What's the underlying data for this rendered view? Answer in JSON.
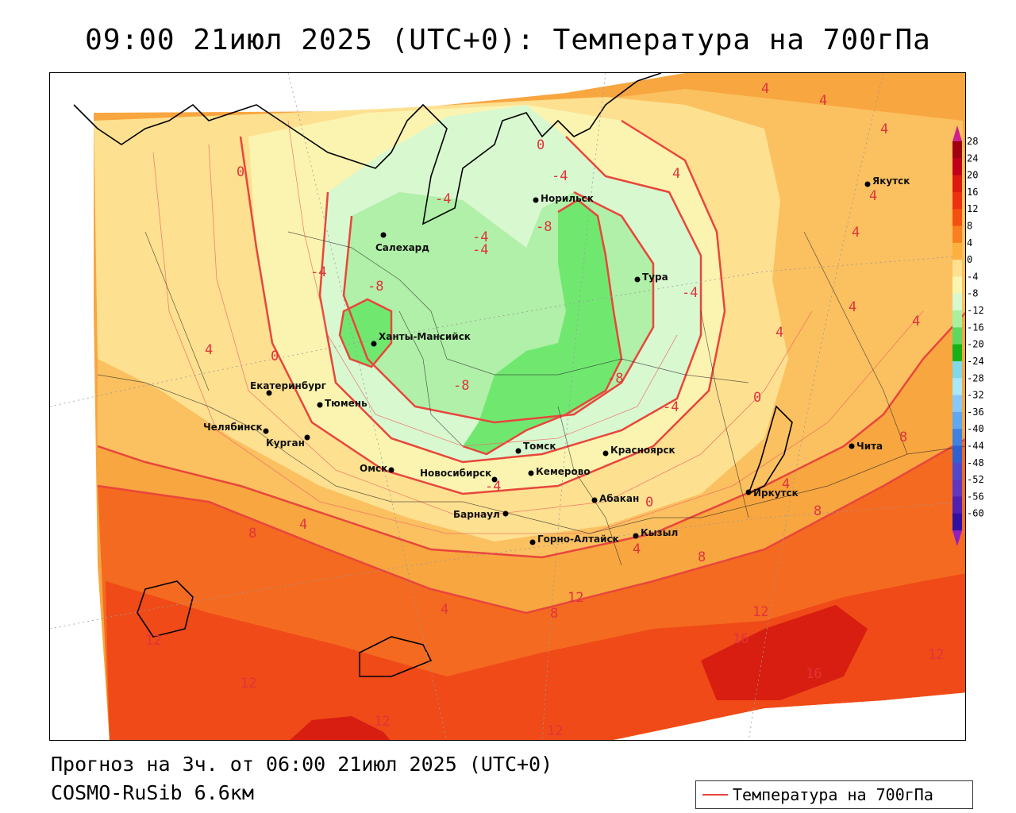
{
  "header": {
    "title": "09:00 21июл 2025 (UTC+0): Температура на 700гПа"
  },
  "footer": {
    "forecast_line": "Прогноз на 3ч. от 06:00 21июл 2025 (UTC+0)",
    "model_line": "COSMO-RuSib 6.6км"
  },
  "legend": {
    "line_label": "Температура на 700гПа",
    "line_color": "#e8463c"
  },
  "colorbar": {
    "ticks": [
      "28",
      "24",
      "20",
      "16",
      "12",
      "8",
      "4",
      "0",
      "-4",
      "-8",
      "-12",
      "-16",
      "-20",
      "-24",
      "-28",
      "-32",
      "-36",
      "-40",
      "-44",
      "-48",
      "-52",
      "-56",
      "-60"
    ],
    "colors": [
      "#a00010",
      "#c00018",
      "#dc1a10",
      "#ec3010",
      "#f45010",
      "#f88020",
      "#fcb040",
      "#fde090",
      "#f8f6b0",
      "#d8f8d0",
      "#a8f0a0",
      "#60d860",
      "#18b018",
      "#80d8e8",
      "#a8e8f8",
      "#88c8f8",
      "#60a8f0",
      "#4080e0",
      "#3060d0",
      "#5048c8",
      "#6038c0",
      "#5020b0",
      "#3010a0"
    ],
    "top_arrow_color": "#d0208c",
    "bottom_arrow_color": "#9020c0"
  },
  "cities": [
    {
      "name": "Салехард"
    },
    {
      "name": "Норильск"
    },
    {
      "name": "Тура"
    },
    {
      "name": "Ханты-Мансийск"
    },
    {
      "name": "Екатеринбург"
    },
    {
      "name": "Тюмень"
    },
    {
      "name": "Челябинск"
    },
    {
      "name": "Курган"
    },
    {
      "name": "Омск"
    },
    {
      "name": "Новосибирск"
    },
    {
      "name": "Томск"
    },
    {
      "name": "Кемерово"
    },
    {
      "name": "Красноярск"
    },
    {
      "name": "Барнаул"
    },
    {
      "name": "Абакан"
    },
    {
      "name": "Горно-Алтайск"
    },
    {
      "name": "Кызыл"
    },
    {
      "name": "Иркутск"
    },
    {
      "name": "Чита"
    },
    {
      "name": "Якутск"
    }
  ],
  "isotherm_labels": [
    {
      "text": "0"
    },
    {
      "text": "0"
    },
    {
      "text": "-4"
    },
    {
      "text": "-4"
    },
    {
      "text": "-4"
    },
    {
      "text": "-4"
    },
    {
      "text": "-8"
    },
    {
      "text": "-8"
    },
    {
      "text": "-8"
    },
    {
      "text": "-8"
    },
    {
      "text": "-4"
    },
    {
      "text": "-4"
    },
    {
      "text": "4"
    },
    {
      "text": "4"
    },
    {
      "text": "4"
    },
    {
      "text": "4"
    },
    {
      "text": "4"
    },
    {
      "text": "4"
    },
    {
      "text": "4"
    },
    {
      "text": "4"
    },
    {
      "text": "4"
    },
    {
      "text": "0"
    },
    {
      "text": "0"
    },
    {
      "text": "-4"
    },
    {
      "text": "4"
    },
    {
      "text": "8"
    },
    {
      "text": "8"
    },
    {
      "text": "4"
    },
    {
      "text": "8"
    },
    {
      "text": "0"
    },
    {
      "text": "4"
    },
    {
      "text": "8"
    },
    {
      "text": "4"
    },
    {
      "text": "12"
    },
    {
      "text": "8"
    },
    {
      "text": "12"
    },
    {
      "text": "16"
    },
    {
      "text": "16"
    },
    {
      "text": "12"
    },
    {
      "text": "12"
    },
    {
      "text": "12"
    },
    {
      "text": "12"
    },
    {
      "text": "12"
    },
    {
      "text": "4"
    },
    {
      "text": "-4"
    }
  ]
}
